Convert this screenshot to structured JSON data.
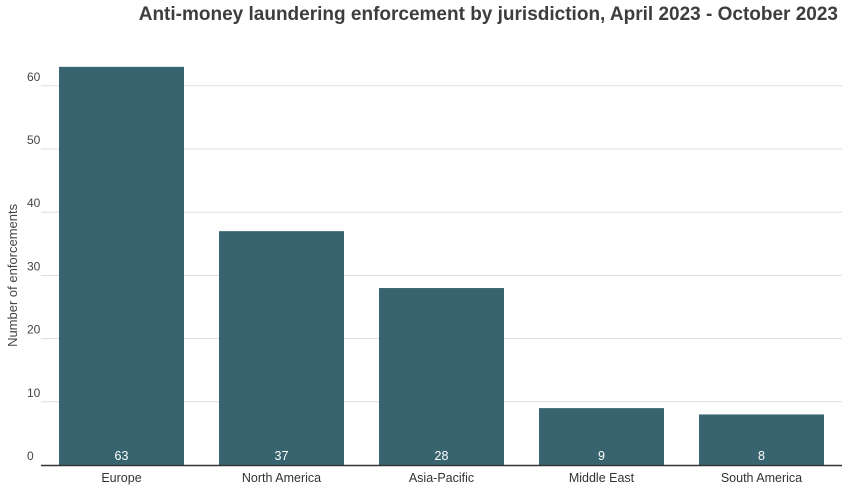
{
  "chart_data": {
    "type": "bar",
    "title": "Anti-money laundering enforcement by jurisdiction, April 2023 - October 2023",
    "xlabel": "",
    "ylabel": "Number of enforcements",
    "categories": [
      "Europe",
      "North America",
      "Asia-Pacific",
      "Middle East",
      "South America"
    ],
    "values": [
      63,
      37,
      28,
      9,
      8
    ],
    "ylim": [
      0,
      60
    ],
    "yticks": [
      0,
      10,
      20,
      30,
      40,
      50,
      60
    ],
    "grid": true,
    "data_labels": true,
    "legend": "none",
    "bar_color": "#37646f",
    "axis_color": "#333333",
    "grid_color": "#dddddd"
  }
}
